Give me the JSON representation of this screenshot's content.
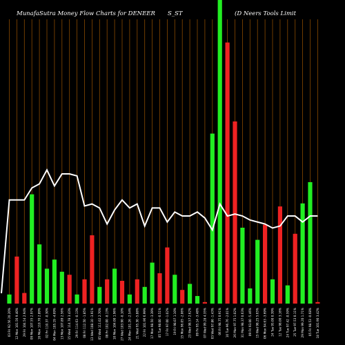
{
  "header": {
    "title_left": "MunafaSutra  Money Flow  Charts for DENEER",
    "title_mid": "S_ST",
    "title_right": "(D      Neers Tools Limit"
  },
  "colors": {
    "background": "#000000",
    "grid": "#8a4a00",
    "up": "#22ee22",
    "down": "#ee2222",
    "line": "#ffffff"
  },
  "chart_data": {
    "type": "bar",
    "x_tick_labels": [
      "03 Fri 92.56 20.20%",
      "12 Mon 101.56 9.40%",
      "29 Fri 104.54 2.94%",
      "09 Mon 107.55 2.97%",
      "16 Mon 110.70 2.89%",
      "02 Fri 110.37 -0.30%",
      "04 Mon 105.19 -4.69%",
      "13 Mon 107.89 2.56%",
      "15 Wed 114.78 3.43%",
      "29 Fri 114.63 -0.13%",
      "08 Fri 112.50 -1.85%",
      "13 Wed 108.10 -3.91%",
      "05 Wed 111.02 2.70%",
      "08 Fri 102.00 -8.13%",
      "10 Mon 104.00 1.96%",
      "27 Wed 103.90 -0.10%",
      "24 Mon 101.26 -2.54%",
      "21 Wed 95.30 -5.88%",
      "22 Fri 101.96 6.99%",
      "17 Mon 98.50 -3.39%",
      "05 Tue 98.00 -0.51%",
      "17 Fri 97.00 -1.02%",
      "19 Fri 98.07 1.10%",
      "15 Mon 96.05 -2.06%",
      "23 Wed 98.57 2.62%",
      "09 Fri 95.14 -3.48%",
      "07 Wed 99.28 4.35%",
      "03 Wed 97.86 -1.43%",
      "06 Fri 98.75 0.91%",
      "10 Tue 96.76 -2.01%",
      "26 Mon 97.75 1.02%",
      "31 Mon 98.37 0.63%",
      "09 Fri 93.00 -5.46%",
      "15 Wed 98.25 5.65%",
      "06 Mon 94.63 -3.69%",
      "24 Tue 95.00 0.39%",
      "12 Tue 98.00 3.16%",
      "24 Tue 97.42 -0.59%",
      "25 Tue 97.53 0.11%",
      "29 Mon 99.20 1.71%",
      "05 Fri 98.53 -0.68%",
      "18 Tue 101.90 3.42%"
    ],
    "bar_direction": [
      "up",
      "down",
      "down",
      "up",
      "up",
      "up",
      "up",
      "up",
      "down",
      "up",
      "down",
      "down",
      "up",
      "down",
      "up",
      "down",
      "up",
      "down",
      "up",
      "up",
      "down",
      "down",
      "up",
      "down",
      "up",
      "up",
      "down",
      "up",
      "up",
      "down",
      "down",
      "up",
      "up",
      "up",
      "down",
      "up",
      "down",
      "up",
      "down",
      "up",
      "up",
      "down"
    ],
    "bar_values": [
      3,
      15.5,
      3.5,
      36,
      19.5,
      11.5,
      14.5,
      10.5,
      9.5,
      3,
      8,
      22.5,
      5.5,
      8,
      11.5,
      7.5,
      3,
      8,
      5.5,
      13.5,
      10,
      18.5,
      9.5,
      4.5,
      6.5,
      2.5,
      0.5,
      56,
      100,
      86,
      60,
      25,
      5,
      21,
      26,
      8,
      32,
      6,
      23,
      33,
      40,
      0.5
    ],
    "line_values": [
      50,
      50,
      50,
      56,
      58,
      65,
      57,
      63,
      63,
      62,
      47,
      48,
      46,
      38,
      45,
      50,
      46,
      48,
      37,
      46,
      46,
      39,
      44,
      42,
      42,
      44,
      41,
      35,
      48,
      42,
      43,
      42,
      40,
      39,
      38,
      36,
      37,
      42,
      42,
      39,
      42,
      42
    ],
    "ylim": [
      0,
      100
    ]
  }
}
